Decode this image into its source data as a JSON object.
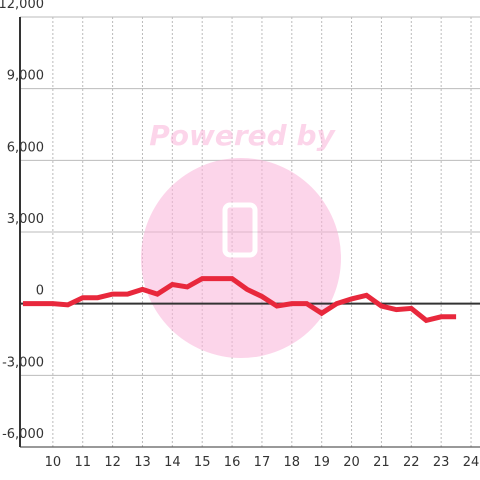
{
  "chart_data": {
    "type": "line",
    "watermark": "Powered by",
    "x": [
      9,
      9.5,
      10,
      10.5,
      11,
      11.5,
      12,
      12.5,
      13,
      13.5,
      14,
      14.5,
      15,
      15.5,
      16,
      16.5,
      17,
      17.5,
      18,
      18.5,
      19,
      19.5,
      20,
      20.5,
      21,
      21.5,
      22,
      22.5,
      23,
      23.5
    ],
    "series": [
      {
        "color": "#e8283c",
        "values": [
          0,
          0,
          0,
          -50,
          250,
          250,
          400,
          400,
          600,
          400,
          800,
          700,
          1050,
          1050,
          1050,
          600,
          300,
          -100,
          0,
          0,
          -400,
          0,
          200,
          350,
          -100,
          -250,
          -200,
          -700,
          -550,
          -550
        ]
      }
    ],
    "xlim": [
      8.9,
      24.3
    ],
    "xticks": [
      10,
      11,
      12,
      13,
      14,
      15,
      16,
      17,
      18,
      19,
      20,
      21,
      22,
      23,
      24
    ],
    "ylim": [
      -6000,
      12000
    ],
    "yticks": [
      {
        "value": -6000,
        "label": "-6,000"
      },
      {
        "value": -3000,
        "label": "-3,000"
      },
      0,
      {
        "value": 3000,
        "label": "3,000"
      },
      {
        "value": 6000,
        "label": "6,000"
      },
      {
        "value": 9000,
        "label": "9,000"
      },
      {
        "value": 12000,
        "label": "12,000"
      }
    ],
    "grid": true
  }
}
